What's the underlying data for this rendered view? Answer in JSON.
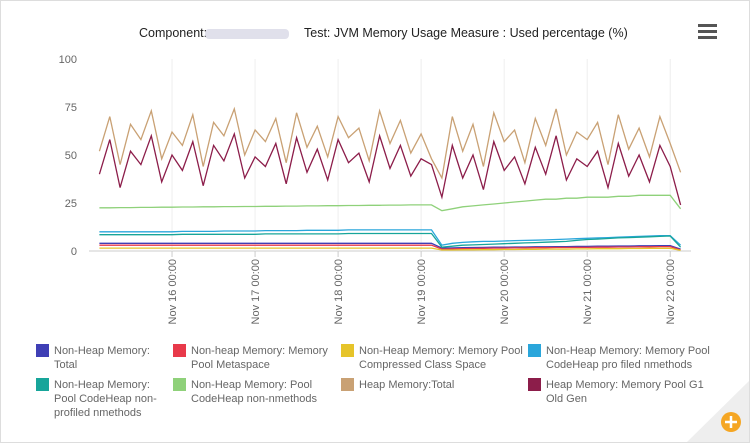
{
  "chart_data": {
    "type": "line",
    "component_label": "Component:",
    "title": "Test: JVM Memory Usage Measure : Used percentage (%)",
    "x": [
      "Nov 15 03:00",
      "Nov 15 06:00",
      "Nov 15 09:00",
      "Nov 15 12:00",
      "Nov 15 15:00",
      "Nov 15 18:00",
      "Nov 15 21:00",
      "Nov 16 00:00",
      "Nov 16 03:00",
      "Nov 16 06:00",
      "Nov 16 09:00",
      "Nov 16 12:00",
      "Nov 16 15:00",
      "Nov 16 18:00",
      "Nov 16 21:00",
      "Nov 17 00:00",
      "Nov 17 03:00",
      "Nov 17 06:00",
      "Nov 17 09:00",
      "Nov 17 12:00",
      "Nov 17 15:00",
      "Nov 17 18:00",
      "Nov 17 21:00",
      "Nov 18 00:00",
      "Nov 18 03:00",
      "Nov 18 06:00",
      "Nov 18 09:00",
      "Nov 18 12:00",
      "Nov 18 15:00",
      "Nov 18 18:00",
      "Nov 18 21:00",
      "Nov 19 00:00",
      "Nov 19 03:00",
      "Nov 19 06:00",
      "Nov 19 09:00",
      "Nov 19 12:00",
      "Nov 19 15:00",
      "Nov 19 18:00",
      "Nov 19 21:00",
      "Nov 20 00:00",
      "Nov 20 03:00",
      "Nov 20 06:00",
      "Nov 20 09:00",
      "Nov 20 12:00",
      "Nov 20 15:00",
      "Nov 20 18:00",
      "Nov 20 21:00",
      "Nov 21 00:00",
      "Nov 21 03:00",
      "Nov 21 06:00",
      "Nov 21 09:00",
      "Nov 21 12:00",
      "Nov 21 15:00",
      "Nov 21 18:00",
      "Nov 21 21:00",
      "Nov 22 00:00",
      "Nov 22 03:00"
    ],
    "xlim": [
      "Nov 15 00:00",
      "Nov 22 06:00"
    ],
    "xticks": [
      "Nov 16 00:00",
      "Nov 17 00:00",
      "Nov 18 00:00",
      "Nov 19 00:00",
      "Nov 20 00:00",
      "Nov 21 00:00",
      "Nov 22 00:00"
    ],
    "ylim": [
      0,
      100
    ],
    "yticks": [
      0,
      25,
      50,
      75,
      100
    ],
    "grid": true,
    "series": [
      {
        "name": "Non-Heap Memory: Total",
        "color": "#3f3fb5",
        "values": [
          4,
          4,
          4,
          4,
          4,
          4,
          4,
          4,
          4,
          4,
          4,
          4,
          4,
          4,
          4,
          4,
          4,
          4,
          4,
          4,
          4,
          4,
          4,
          4,
          4,
          4,
          4,
          4,
          4,
          4,
          4,
          4,
          4,
          1.5,
          1.6,
          1.7,
          1.8,
          1.9,
          2,
          2,
          2.1,
          2.1,
          2.2,
          2.2,
          2.3,
          2.3,
          2.4,
          2.4,
          2.5,
          2.5,
          2.6,
          2.6,
          2.7,
          2.7,
          2.8,
          2.8,
          1
        ]
      },
      {
        "name": "Non-heap Memory: Memory Pool Metaspace",
        "color": "#e8394a",
        "values": [
          3,
          3,
          3,
          3,
          3,
          3,
          3,
          3,
          3,
          3,
          3,
          3,
          3,
          3,
          3,
          3,
          3,
          3,
          3,
          3,
          3,
          3,
          3,
          3,
          3,
          3,
          3,
          3,
          3,
          3,
          3,
          3,
          3,
          1,
          1.1,
          1.2,
          1.3,
          1.4,
          1.5,
          1.5,
          1.6,
          1.6,
          1.7,
          1.7,
          1.8,
          1.8,
          1.9,
          1.9,
          2,
          2,
          2.1,
          2.1,
          2.2,
          2.2,
          2.3,
          2.3,
          0.5
        ]
      },
      {
        "name": "Non-Heap Memory: Memory Pool Compressed Class Space",
        "color": "#e6c42a",
        "values": [
          1.5,
          1.5,
          1.5,
          1.5,
          1.5,
          1.5,
          1.5,
          1.5,
          1.5,
          1.5,
          1.5,
          1.5,
          1.5,
          1.5,
          1.5,
          1.5,
          1.5,
          1.5,
          1.5,
          1.5,
          1.5,
          1.5,
          1.5,
          1.5,
          1.5,
          1.5,
          1.5,
          1.5,
          1.5,
          1.5,
          1.5,
          1.5,
          1.5,
          0.5,
          0.5,
          0.6,
          0.6,
          0.7,
          0.7,
          0.8,
          0.8,
          0.9,
          0.9,
          1,
          1,
          1,
          1.1,
          1.1,
          1.2,
          1.2,
          1.2,
          1.3,
          1.3,
          1.4,
          1.4,
          1.4,
          0.3
        ]
      },
      {
        "name": "Non-Heap Memory: Memory Pool CodeHeap pro filed nmethods",
        "color": "#2aa6db",
        "values": [
          10,
          10,
          10,
          10,
          10,
          10,
          10,
          10,
          10.2,
          10.2,
          10.2,
          10.2,
          10.4,
          10.4,
          10.4,
          10.4,
          10.6,
          10.6,
          10.6,
          10.6,
          10.8,
          10.8,
          10.8,
          10.8,
          11,
          11,
          11,
          11,
          11,
          11,
          11,
          11,
          11,
          3,
          4,
          4.5,
          4.8,
          5,
          5,
          5.2,
          5.4,
          5.5,
          5.6,
          5.8,
          6,
          6.2,
          6.4,
          6.6,
          6.8,
          7,
          7.2,
          7.4,
          7.6,
          7.8,
          8,
          8,
          3
        ]
      },
      {
        "name": "Non-Heap Memory: Pool CodeHeap non-profiled nmethods",
        "color": "#17a59a",
        "values": [
          8.5,
          8.5,
          8.5,
          8.5,
          8.5,
          8.5,
          8.5,
          8.5,
          8.7,
          8.7,
          8.7,
          8.7,
          8.7,
          8.7,
          8.7,
          8.7,
          8.9,
          8.9,
          8.9,
          8.9,
          8.9,
          8.9,
          8.9,
          8.9,
          9.1,
          9.1,
          9.1,
          9.1,
          9.1,
          9.1,
          9.1,
          9.1,
          9.1,
          2,
          2.5,
          3,
          3.2,
          3.4,
          3.6,
          3.8,
          4,
          4.2,
          4.4,
          4.6,
          4.8,
          5,
          5.5,
          6,
          6.2,
          6.5,
          6.8,
          7,
          7.2,
          7.4,
          7.6,
          7.8,
          2
        ]
      },
      {
        "name": "Non-Heap Memory: Pool CodeHeap non-nmethods",
        "color": "#8fd17a",
        "values": [
          22.5,
          22.5,
          22.6,
          22.6,
          22.7,
          22.7,
          22.8,
          22.8,
          22.9,
          22.9,
          23,
          23,
          23.1,
          23.1,
          23.2,
          23.2,
          23.3,
          23.3,
          23.4,
          23.4,
          23.5,
          23.5,
          23.6,
          23.6,
          23.7,
          23.7,
          23.8,
          23.8,
          23.9,
          23.9,
          24,
          24,
          24,
          21,
          22,
          23,
          23.5,
          24,
          24.5,
          25,
          25.5,
          26,
          26.5,
          27,
          27,
          27.5,
          27.5,
          28,
          28,
          28,
          28.5,
          28.5,
          29,
          29,
          29,
          29,
          22
        ]
      },
      {
        "name": "Heap Memory:Total",
        "color": "#c9a174",
        "values": [
          52,
          70,
          45,
          66,
          58,
          73,
          48,
          62,
          55,
          71,
          44,
          67,
          60,
          74,
          50,
          63,
          57,
          69,
          46,
          72,
          54,
          65,
          49,
          70,
          59,
          64,
          47,
          73,
          56,
          68,
          51,
          61,
          48,
          38,
          70,
          52,
          66,
          44,
          72,
          57,
          63,
          46,
          69,
          55,
          74,
          50,
          62,
          58,
          67,
          45,
          71,
          53,
          64,
          49,
          70,
          56,
          41
        ]
      },
      {
        "name": "Heap Memory: Memory Pool G1 Old Gen",
        "color": "#8c1d4a",
        "values": [
          40,
          58,
          33,
          52,
          45,
          60,
          36,
          50,
          42,
          57,
          34,
          55,
          47,
          61,
          38,
          49,
          44,
          56,
          35,
          59,
          41,
          53,
          37,
          58,
          46,
          51,
          36,
          60,
          43,
          55,
          39,
          48,
          45,
          28,
          55,
          38,
          50,
          32,
          57,
          42,
          49,
          35,
          54,
          40,
          60,
          37,
          48,
          44,
          52,
          33,
          56,
          39,
          50,
          36,
          55,
          44,
          24
        ]
      }
    ]
  }
}
